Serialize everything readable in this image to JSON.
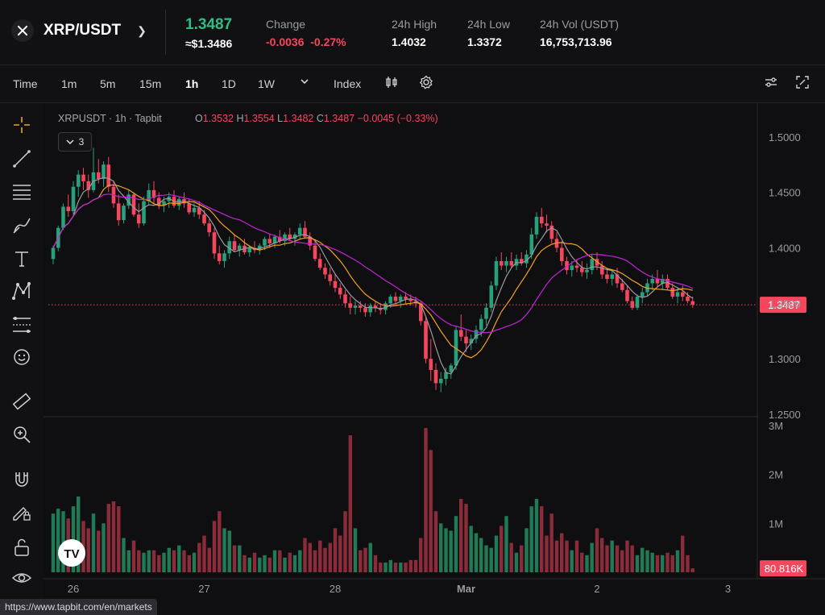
{
  "header": {
    "pair": "XRP/USDT",
    "last_price": "1.3487",
    "usd_price": "≈$1.3486",
    "change_label": "Change",
    "change_abs": "-0.0036",
    "change_pct": "-0.27%",
    "high_label": "24h High",
    "high": "1.4032",
    "low_label": "24h Low",
    "low": "1.3372",
    "vol_label": "24h Vol (USDT)",
    "vol": "16,753,713.96"
  },
  "toolbar": {
    "time": "Time",
    "intervals": [
      "1m",
      "5m",
      "15m",
      "1h",
      "1D",
      "1W"
    ],
    "active": "1h",
    "index": "Index",
    "icons": [
      "chevron-down-icon",
      "candle-type-icon",
      "settings-icon",
      "indicator-settings-icon",
      "fullscreen-icon"
    ]
  },
  "side_tools": [
    "crosshair-icon",
    "trend-line-icon",
    "horizontal-lines-icon",
    "brush-icon",
    "text-icon",
    "pattern-icon",
    "fib-icon",
    "emoji-icon",
    "ruler-icon",
    "zoom-in-icon",
    "magnet-icon",
    "lock-draw-icon",
    "unlock-icon",
    "eye-icon"
  ],
  "legend": {
    "symbol": "XRPUSDT",
    "interval": "1h",
    "source": "Tapbit",
    "o": "1.3532",
    "h": "1.3554",
    "l": "1.3482",
    "c": "1.3487",
    "chg": "−0.0045 (−0.33%)",
    "indicator_count": "3"
  },
  "status_url": "https://www.tapbit.com/en/markets",
  "colors": {
    "up": "#26a17b",
    "down": "#f6465d",
    "ma_fast": "#9a9aa0",
    "ma_mid": "#f7a21b",
    "ma_slow": "#c125d6",
    "price_line": "#f6465d"
  },
  "chart_data": {
    "type": "candlestick",
    "price_axis": {
      "ticks": [
        "1.5000",
        "1.4500",
        "1.4000",
        "1.3500",
        "1.3000",
        "1.2500"
      ],
      "ylim": [
        1.25,
        1.51
      ]
    },
    "volume_axis": {
      "ticks": [
        "3M",
        "2M",
        "1M"
      ],
      "ylim": [
        0,
        3000000
      ]
    },
    "x_ticks": [
      "26",
      "27",
      "28",
      "Mar",
      "2",
      "3"
    ],
    "last_price_label": "1.3487",
    "last_volume_label": "80.816K",
    "candles": [
      [
        1.39,
        1.402,
        1.385,
        1.4,
        1.2
      ],
      [
        1.4,
        1.42,
        1.397,
        1.418,
        1.3
      ],
      [
        1.418,
        1.44,
        1.416,
        1.437,
        1.25
      ],
      [
        1.437,
        1.448,
        1.428,
        1.433,
        1.1
      ],
      [
        1.433,
        1.46,
        1.43,
        1.455,
        1.35
      ],
      [
        1.455,
        1.47,
        1.446,
        1.466,
        1.55
      ],
      [
        1.466,
        1.472,
        1.452,
        1.46,
        1.05
      ],
      [
        1.46,
        1.466,
        1.445,
        1.452,
        0.9
      ],
      [
        1.452,
        1.49,
        1.45,
        1.468,
        1.2
      ],
      [
        1.468,
        1.48,
        1.458,
        1.462,
        0.85
      ],
      [
        1.462,
        1.478,
        1.455,
        1.475,
        1.0
      ],
      [
        1.475,
        1.482,
        1.45,
        1.455,
        1.4
      ],
      [
        1.455,
        1.46,
        1.436,
        1.44,
        1.45
      ],
      [
        1.44,
        1.448,
        1.42,
        1.425,
        1.35
      ],
      [
        1.425,
        1.44,
        1.422,
        1.438,
        0.7
      ],
      [
        1.438,
        1.452,
        1.435,
        1.448,
        0.45
      ],
      [
        1.448,
        1.45,
        1.428,
        1.43,
        0.65
      ],
      [
        1.43,
        1.44,
        1.418,
        1.422,
        0.45
      ],
      [
        1.422,
        1.446,
        1.42,
        1.442,
        0.4
      ],
      [
        1.442,
        1.458,
        1.438,
        1.452,
        0.45
      ],
      [
        1.452,
        1.46,
        1.44,
        1.445,
        0.45
      ],
      [
        1.445,
        1.45,
        1.435,
        1.438,
        0.35
      ],
      [
        1.438,
        1.446,
        1.432,
        1.442,
        0.4
      ],
      [
        1.442,
        1.45,
        1.436,
        1.446,
        0.5
      ],
      [
        1.446,
        1.452,
        1.436,
        1.438,
        0.45
      ],
      [
        1.438,
        1.446,
        1.434,
        1.444,
        0.55
      ],
      [
        1.444,
        1.45,
        1.436,
        1.44,
        0.45
      ],
      [
        1.44,
        1.444,
        1.43,
        1.432,
        0.35
      ],
      [
        1.432,
        1.44,
        1.428,
        1.436,
        0.4
      ],
      [
        1.436,
        1.442,
        1.426,
        1.43,
        0.6
      ],
      [
        1.43,
        1.434,
        1.42,
        1.422,
        0.75
      ],
      [
        1.422,
        1.426,
        1.41,
        1.414,
        0.5
      ],
      [
        1.414,
        1.418,
        1.39,
        1.395,
        1.05
      ],
      [
        1.395,
        1.402,
        1.385,
        1.388,
        1.25
      ],
      [
        1.388,
        1.398,
        1.382,
        1.395,
        0.9
      ],
      [
        1.395,
        1.41,
        1.39,
        1.406,
        0.85
      ],
      [
        1.406,
        1.412,
        1.396,
        1.398,
        0.55
      ],
      [
        1.398,
        1.404,
        1.392,
        1.402,
        0.55
      ],
      [
        1.402,
        1.408,
        1.394,
        1.396,
        0.35
      ],
      [
        1.396,
        1.402,
        1.392,
        1.4,
        0.3
      ],
      [
        1.4,
        1.406,
        1.395,
        1.398,
        0.4
      ],
      [
        1.398,
        1.404,
        1.394,
        1.402,
        0.3
      ],
      [
        1.402,
        1.41,
        1.398,
        1.408,
        0.35
      ],
      [
        1.408,
        1.412,
        1.4,
        1.404,
        0.3
      ],
      [
        1.404,
        1.412,
        1.4,
        1.41,
        0.45
      ],
      [
        1.41,
        1.416,
        1.404,
        1.406,
        0.45
      ],
      [
        1.406,
        1.414,
        1.402,
        1.412,
        0.3
      ],
      [
        1.412,
        1.418,
        1.406,
        1.408,
        0.4
      ],
      [
        1.408,
        1.414,
        1.402,
        1.412,
        0.35
      ],
      [
        1.412,
        1.422,
        1.408,
        1.418,
        0.45
      ],
      [
        1.418,
        1.424,
        1.408,
        1.41,
        0.7
      ],
      [
        1.41,
        1.414,
        1.398,
        1.402,
        0.6
      ],
      [
        1.402,
        1.406,
        1.388,
        1.39,
        0.45
      ],
      [
        1.39,
        1.395,
        1.38,
        1.382,
        0.65
      ],
      [
        1.382,
        1.386,
        1.372,
        1.376,
        0.5
      ],
      [
        1.376,
        1.382,
        1.366,
        1.37,
        0.6
      ],
      [
        1.37,
        1.376,
        1.36,
        1.364,
        0.9
      ],
      [
        1.364,
        1.368,
        1.354,
        1.358,
        0.75
      ],
      [
        1.358,
        1.362,
        1.346,
        1.35,
        1.25
      ],
      [
        1.35,
        1.356,
        1.34,
        1.346,
        2.8
      ],
      [
        1.346,
        1.352,
        1.34,
        1.348,
        0.9
      ],
      [
        1.348,
        1.352,
        1.342,
        1.346,
        0.45
      ],
      [
        1.346,
        1.35,
        1.338,
        1.342,
        0.5
      ],
      [
        1.342,
        1.35,
        1.338,
        1.348,
        0.6
      ],
      [
        1.348,
        1.352,
        1.342,
        1.346,
        0.35
      ],
      [
        1.346,
        1.35,
        1.34,
        1.344,
        0.2
      ],
      [
        1.344,
        1.352,
        1.34,
        1.35,
        0.2
      ],
      [
        1.35,
        1.358,
        1.346,
        1.356,
        0.25
      ],
      [
        1.356,
        1.36,
        1.348,
        1.352,
        0.2
      ],
      [
        1.352,
        1.358,
        1.346,
        1.356,
        0.2
      ],
      [
        1.356,
        1.36,
        1.35,
        1.354,
        0.2
      ],
      [
        1.354,
        1.358,
        1.348,
        1.352,
        0.25
      ],
      [
        1.352,
        1.356,
        1.346,
        1.35,
        0.25
      ],
      [
        1.35,
        1.352,
        1.33,
        1.334,
        0.7
      ],
      [
        1.334,
        1.338,
        1.296,
        1.3,
        2.95
      ],
      [
        1.3,
        1.318,
        1.28,
        1.29,
        2.5
      ],
      [
        1.29,
        1.296,
        1.272,
        1.278,
        1.25
      ],
      [
        1.278,
        1.288,
        1.27,
        1.282,
        1.0
      ],
      [
        1.282,
        1.292,
        1.276,
        1.288,
        0.9
      ],
      [
        1.288,
        1.296,
        1.282,
        1.294,
        0.85
      ],
      [
        1.294,
        1.33,
        1.29,
        1.326,
        1.15
      ],
      [
        1.326,
        1.34,
        1.316,
        1.32,
        1.5
      ],
      [
        1.32,
        1.326,
        1.306,
        1.314,
        1.4
      ],
      [
        1.314,
        1.322,
        1.308,
        1.318,
        0.95
      ],
      [
        1.318,
        1.33,
        1.314,
        1.326,
        0.8
      ],
      [
        1.326,
        1.34,
        1.32,
        1.336,
        0.7
      ],
      [
        1.336,
        1.35,
        1.33,
        1.346,
        0.55
      ],
      [
        1.346,
        1.37,
        1.342,
        1.366,
        0.5
      ],
      [
        1.366,
        1.392,
        1.362,
        1.388,
        0.75
      ],
      [
        1.388,
        1.396,
        1.38,
        1.384,
        0.95
      ],
      [
        1.384,
        1.392,
        1.378,
        1.388,
        1.15
      ],
      [
        1.388,
        1.396,
        1.382,
        1.384,
        0.6
      ],
      [
        1.384,
        1.394,
        1.38,
        1.39,
        0.4
      ],
      [
        1.39,
        1.396,
        1.384,
        1.386,
        0.55
      ],
      [
        1.386,
        1.398,
        1.382,
        1.394,
        0.9
      ],
      [
        1.394,
        1.418,
        1.39,
        1.412,
        1.35
      ],
      [
        1.412,
        1.432,
        1.408,
        1.428,
        1.5
      ],
      [
        1.428,
        1.436,
        1.418,
        1.422,
        1.35
      ],
      [
        1.422,
        1.43,
        1.414,
        1.42,
        0.75
      ],
      [
        1.42,
        1.424,
        1.404,
        1.408,
        1.2
      ],
      [
        1.408,
        1.414,
        1.396,
        1.4,
        0.65
      ],
      [
        1.4,
        1.406,
        1.384,
        1.388,
        0.8
      ],
      [
        1.388,
        1.392,
        1.376,
        1.38,
        0.65
      ],
      [
        1.38,
        1.388,
        1.374,
        1.384,
        0.45
      ],
      [
        1.384,
        1.39,
        1.378,
        1.382,
        0.65
      ],
      [
        1.382,
        1.388,
        1.374,
        1.378,
        0.4
      ],
      [
        1.378,
        1.386,
        1.372,
        1.38,
        0.35
      ],
      [
        1.38,
        1.394,
        1.376,
        1.39,
        0.6
      ],
      [
        1.39,
        1.396,
        1.38,
        1.384,
        0.9
      ],
      [
        1.384,
        1.388,
        1.372,
        1.376,
        0.7
      ],
      [
        1.376,
        1.382,
        1.368,
        1.372,
        0.55
      ],
      [
        1.372,
        1.38,
        1.366,
        1.376,
        0.65
      ],
      [
        1.376,
        1.382,
        1.364,
        1.368,
        0.55
      ],
      [
        1.368,
        1.372,
        1.36,
        1.362,
        0.45
      ],
      [
        1.362,
        1.366,
        1.35,
        1.352,
        0.65
      ],
      [
        1.352,
        1.356,
        1.344,
        1.346,
        0.55
      ],
      [
        1.346,
        1.358,
        1.344,
        1.356,
        0.35
      ],
      [
        1.356,
        1.364,
        1.35,
        1.36,
        0.5
      ],
      [
        1.36,
        1.372,
        1.356,
        1.368,
        0.45
      ],
      [
        1.368,
        1.376,
        1.362,
        1.372,
        0.4
      ],
      [
        1.372,
        1.38,
        1.364,
        1.368,
        0.35
      ],
      [
        1.368,
        1.376,
        1.362,
        1.372,
        0.35
      ],
      [
        1.372,
        1.376,
        1.362,
        1.364,
        0.4
      ],
      [
        1.364,
        1.368,
        1.354,
        1.356,
        0.35
      ],
      [
        1.356,
        1.364,
        1.35,
        1.36,
        0.45
      ],
      [
        1.36,
        1.366,
        1.352,
        1.356,
        0.75
      ],
      [
        1.356,
        1.36,
        1.35,
        1.352,
        0.35
      ],
      [
        1.352,
        1.356,
        1.346,
        1.3487,
        0.08
      ]
    ]
  }
}
